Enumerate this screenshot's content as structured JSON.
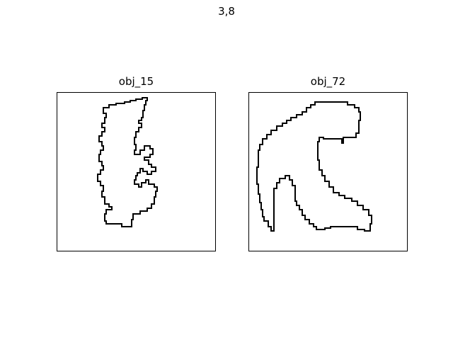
{
  "figure": {
    "suptitle": "3,8",
    "panels": [
      {
        "title": "obj_15"
      },
      {
        "title": "obj_72"
      }
    ],
    "stroke_color": "#000000",
    "background": "#ffffff"
  }
}
